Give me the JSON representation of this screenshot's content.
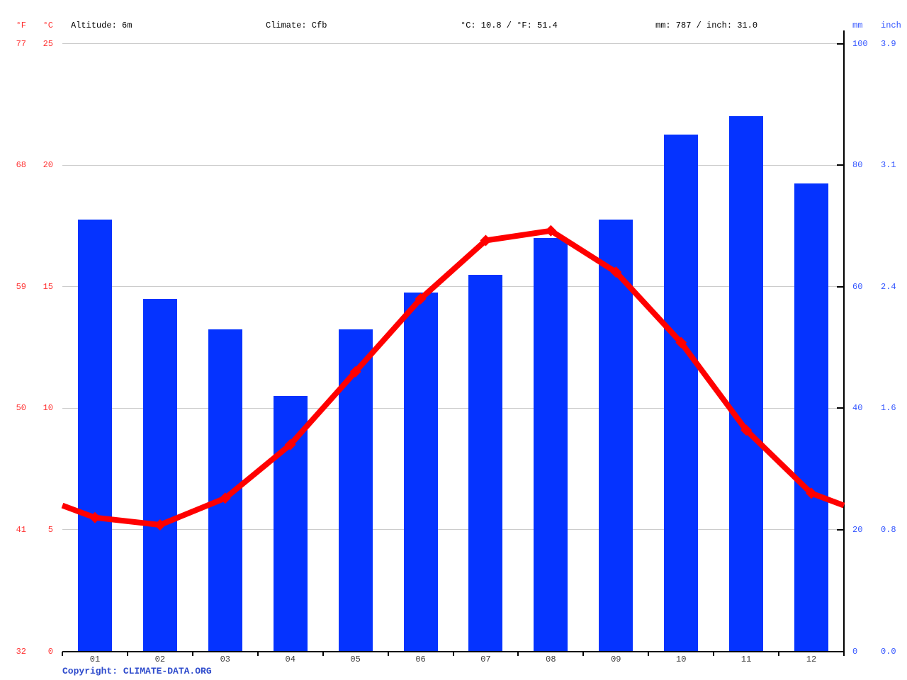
{
  "header": {
    "fahrenheit_label": "°F",
    "celsius_label": "°C",
    "altitude": "Altitude: 6m",
    "climate": "Climate: Cfb",
    "temperature_summary": "°C: 10.8 / °F: 51.4",
    "precipitation_summary": "mm: 787 / inch: 31.0",
    "mm_label": "mm",
    "inch_label": "inch"
  },
  "axes": {
    "fahrenheit_ticks": [
      "77",
      "68",
      "59",
      "50",
      "41",
      "32"
    ],
    "celsius_ticks": [
      "25",
      "20",
      "15",
      "10",
      "5",
      "0"
    ],
    "mm_ticks": [
      "100",
      "80",
      "60",
      "40",
      "20",
      "0"
    ],
    "inch_ticks": [
      "3.9",
      "3.1",
      "2.4",
      "1.6",
      "0.8",
      "0.0"
    ],
    "month_ticks": [
      "01",
      "02",
      "03",
      "04",
      "05",
      "06",
      "07",
      "08",
      "09",
      "10",
      "11",
      "12"
    ]
  },
  "chart_data": {
    "type": "bar",
    "title": "Climate graph (Cfb)",
    "categories": [
      "01",
      "02",
      "03",
      "04",
      "05",
      "06",
      "07",
      "08",
      "09",
      "10",
      "11",
      "12"
    ],
    "series": [
      {
        "name": "precipitation",
        "type": "bar",
        "unit": "mm",
        "values": [
          71,
          58,
          53,
          42,
          53,
          59,
          62,
          68,
          71,
          85,
          88,
          77
        ]
      },
      {
        "name": "temperature",
        "type": "line",
        "unit": "°C",
        "values": [
          5.5,
          5.2,
          6.3,
          8.5,
          11.5,
          14.5,
          16.9,
          17.3,
          15.6,
          12.7,
          9.1,
          6.5
        ]
      }
    ],
    "temp_axis_range_c": [
      0,
      25
    ],
    "temp_axis_range_f": [
      32,
      77
    ],
    "precip_axis_range_mm": [
      0,
      100
    ],
    "precip_axis_range_inch": [
      0.0,
      3.9
    ],
    "grid": true,
    "legend_position": "none",
    "annotations": {
      "mean_temp_c": 10.8,
      "mean_temp_f": 51.4,
      "total_precip_mm": 787,
      "total_precip_inch": 31.0,
      "altitude_m": 6,
      "climate_class": "Cfb"
    }
  },
  "footer": {
    "copyright": "Copyright: CLIMATE-DATA.ORG"
  },
  "colors": {
    "bar_blue": "#0533ff",
    "line_red": "#ff0000",
    "temp_label_red": "#ff3333",
    "precip_label_blue": "#3355ff",
    "copyright_blue": "#2e4bcc",
    "grid_gray": "#cccccc",
    "axis_black": "#000000",
    "month_label_gray": "#3a3a3a"
  }
}
